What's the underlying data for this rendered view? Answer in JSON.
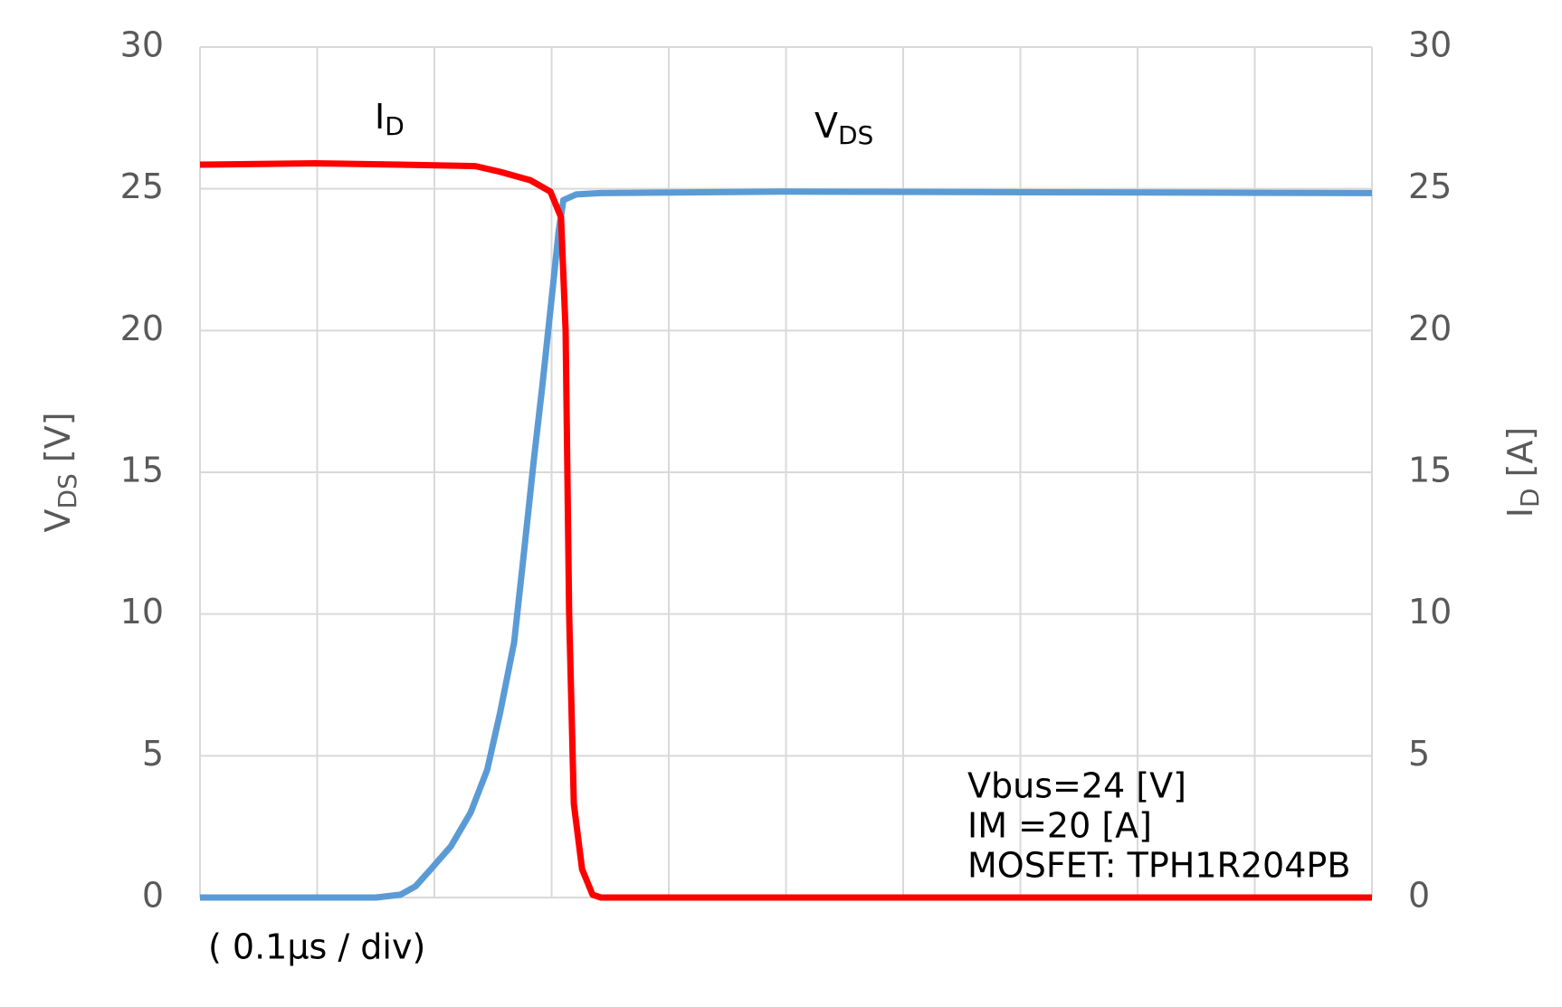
{
  "chart_data": {
    "type": "line",
    "xlabel": "( 0.1μs / div)",
    "ylabel": {
      "text": "V",
      "subscript": "DS",
      "unit": " [V]"
    },
    "y2label": {
      "text": "I",
      "subscript": "D",
      "unit": " [A]"
    },
    "xlim": [
      0,
      10
    ],
    "xticks": [
      0,
      1,
      2,
      3,
      4,
      5,
      6,
      7,
      8,
      9,
      10
    ],
    "ylim": [
      0,
      30
    ],
    "yticks": [
      0,
      5,
      10,
      15,
      20,
      25,
      30
    ],
    "y2lim": [
      0,
      30
    ],
    "y2ticks": [
      0,
      5,
      10,
      15,
      20,
      25,
      30
    ],
    "grid": true,
    "series": [
      {
        "name": {
          "text": "V",
          "subscript": "DS"
        },
        "color": "#5b9bd5",
        "axis": "y",
        "x": [
          0,
          1.5,
          1.71,
          1.84,
          1.97,
          2.14,
          2.31,
          2.45,
          2.56,
          2.68,
          2.76,
          2.85,
          2.92,
          3.01,
          3.06,
          3.1,
          3.21,
          3.42,
          5,
          10
        ],
        "values": [
          0,
          0,
          0.1,
          0.4,
          1.0,
          1.8,
          3.0,
          4.5,
          6.5,
          9,
          12,
          15.5,
          18,
          21.5,
          23.5,
          24.6,
          24.8,
          24.85,
          24.9,
          24.85
        ]
      },
      {
        "name": {
          "text": "I",
          "subscript": "D"
        },
        "color": "#ff0000",
        "axis": "y2",
        "x": [
          0,
          0.98,
          1.71,
          2.35,
          2.56,
          2.82,
          2.99,
          3.08,
          3.12,
          3.15,
          3.19,
          3.26,
          3.35,
          3.42,
          10
        ],
        "values": [
          25.85,
          25.9,
          25.85,
          25.8,
          25.6,
          25.3,
          24.9,
          24.0,
          20,
          10,
          3.3,
          1.0,
          0.1,
          0,
          0
        ]
      }
    ],
    "annotations": [
      "Vbus=24 [V]",
      "IM =20 [A]",
      "MOSFET: TPH1R204PB"
    ]
  }
}
